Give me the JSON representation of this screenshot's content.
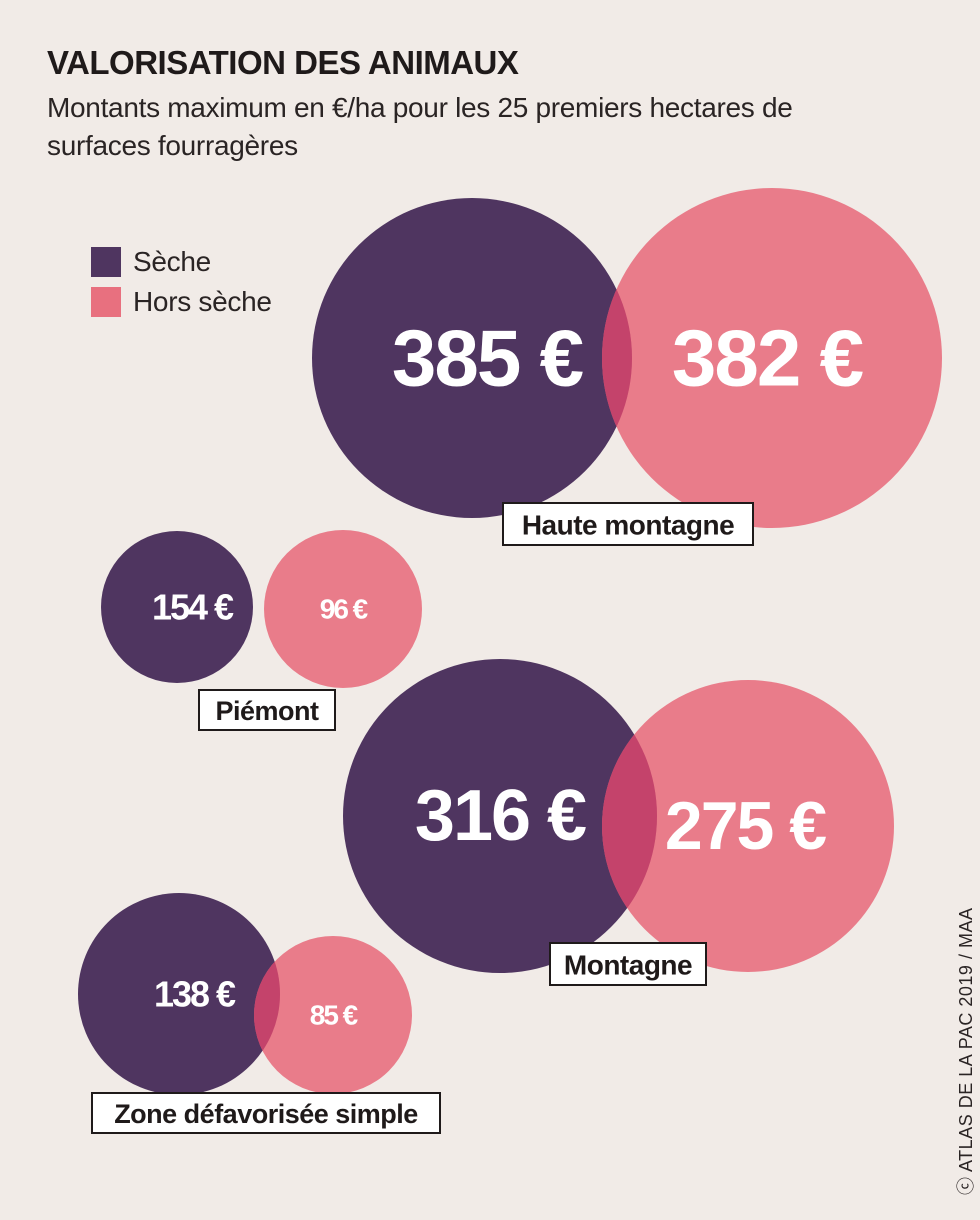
{
  "title": "VALORISATION DES ANIMAUX",
  "subtitle": "Montants maximum en €/ha pour les 25 premiers hectares de surfaces fourragères",
  "legend": [
    {
      "label": "Sèche",
      "color": "#4f3560"
    },
    {
      "label": "Hors sèche",
      "color": "#e8707f"
    }
  ],
  "source": "ⓒ ATLAS DE LA PAC 2019 / MAA",
  "chart_data": {
    "type": "bubble",
    "unit": "€/ha",
    "series": [
      {
        "name": "Sèche",
        "color": "#4f3560"
      },
      {
        "name": "Hors sèche",
        "color": "#e8707f"
      }
    ],
    "categories": [
      {
        "name": "Haute montagne",
        "seche": 385,
        "hors_seche": 382,
        "seche_label": "385 €",
        "hors_seche_label": "382 €"
      },
      {
        "name": "Piémont",
        "seche": 154,
        "hors_seche": 96,
        "seche_label": "154 €",
        "hors_seche_label": "96 €"
      },
      {
        "name": "Montagne",
        "seche": 316,
        "hors_seche": 275,
        "seche_label": "316 €",
        "hors_seche_label": "275 €"
      },
      {
        "name": "Zone défavorisée simple",
        "seche": 138,
        "hors_seche": 85,
        "seche_label": "138 €",
        "hors_seche_label": "85 €"
      }
    ]
  }
}
